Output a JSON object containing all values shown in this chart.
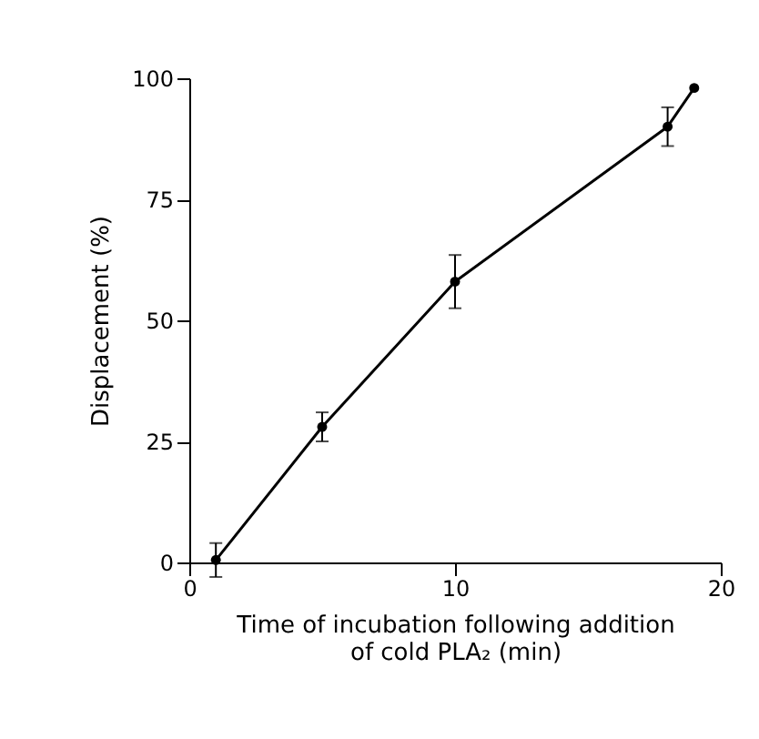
{
  "chart_data": {
    "type": "line",
    "xlabel": "Time of incubation following addition\nof cold PLA₂ (min)",
    "ylabel": "Displacement (%)",
    "x": [
      1,
      5,
      10,
      18,
      19
    ],
    "values": [
      0.5,
      28,
      58,
      90,
      98
    ],
    "errors": [
      3.5,
      3,
      5.5,
      4,
      null
    ],
    "color": "#000000",
    "marker": "circle",
    "line_style": "solid",
    "grid": false,
    "xlim": [
      0,
      20
    ],
    "xticks": [
      0,
      10,
      20
    ],
    "ylim": [
      0,
      100
    ],
    "yticks": [
      0,
      25,
      50,
      75,
      100
    ]
  }
}
